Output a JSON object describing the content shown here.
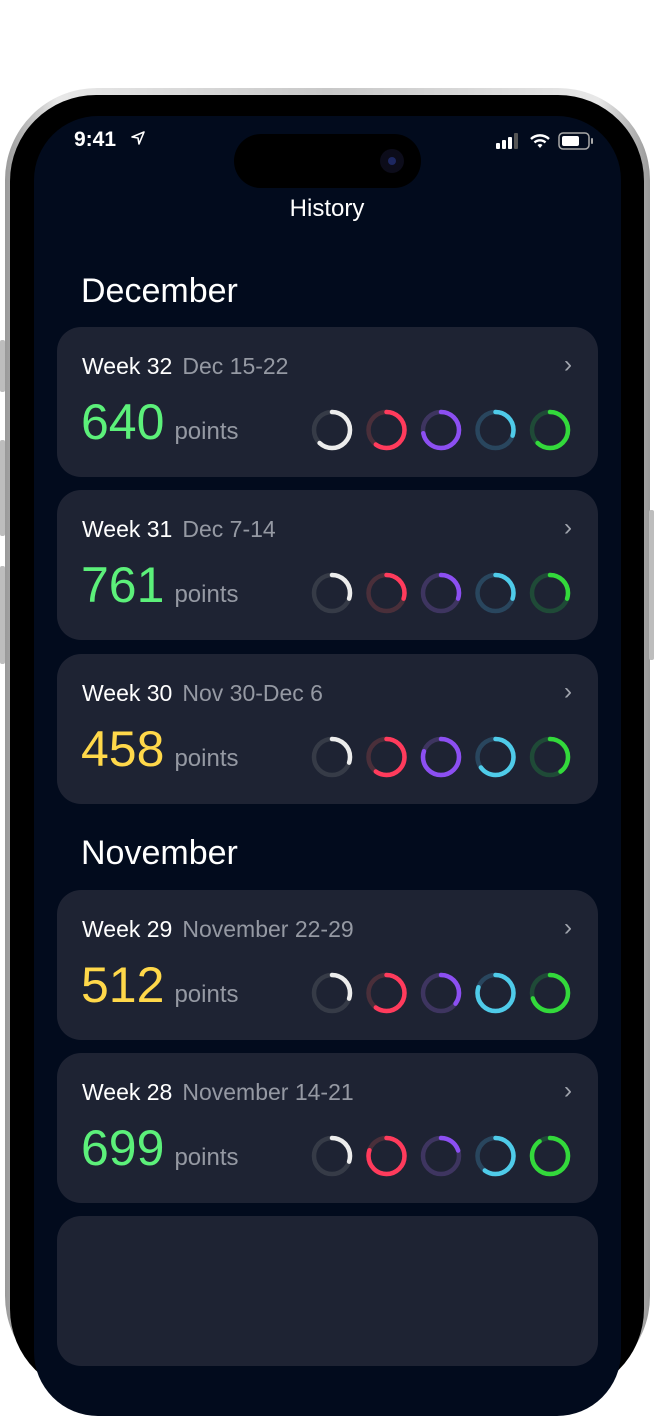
{
  "status_bar": {
    "time": "9:41",
    "location_icon": "location-arrow-icon",
    "signal_icon": "cellular-signal-icon",
    "wifi_icon": "wifi-icon",
    "battery_icon": "battery-icon"
  },
  "header": {
    "title": "History"
  },
  "ring_colors": [
    {
      "fg": "#ececec",
      "bg": "#363b47"
    },
    {
      "fg": "#ff3b5c",
      "bg": "#4a2f3a"
    },
    {
      "fg": "#8c4ff2",
      "bg": "#3e3560"
    },
    {
      "fg": "#4fcbe9",
      "bg": "#29465e"
    },
    {
      "fg": "#33d93b",
      "bg": "#1f4a37"
    }
  ],
  "score_colors": {
    "green": "#5cf07a",
    "yellow": "#ffd84a"
  },
  "sections": [
    {
      "month": "December",
      "weeks": [
        {
          "week": "Week 32",
          "dates": "Dec 15-22",
          "points": "640",
          "unit": "points",
          "color": "green",
          "rings": [
            0.62,
            0.6,
            0.72,
            0.3,
            0.62
          ]
        },
        {
          "week": "Week 31",
          "dates": "Dec 7-14",
          "points": "761",
          "unit": "points",
          "color": "green",
          "rings": [
            0.3,
            0.3,
            0.3,
            0.3,
            0.3
          ]
        },
        {
          "week": "Week 30",
          "dates": "Nov 30-Dec 6",
          "points": "458",
          "unit": "points",
          "color": "yellow",
          "rings": [
            0.3,
            0.6,
            0.8,
            0.65,
            0.4
          ]
        }
      ]
    },
    {
      "month": "November",
      "weeks": [
        {
          "week": "Week 29",
          "dates": "November 22-29",
          "points": "512",
          "unit": "points",
          "color": "yellow",
          "rings": [
            0.3,
            0.6,
            0.35,
            0.8,
            0.7
          ]
        },
        {
          "week": "Week 28",
          "dates": "November 14-21",
          "points": "699",
          "unit": "points",
          "color": "green",
          "rings": [
            0.3,
            0.8,
            0.2,
            0.6,
            0.9
          ]
        }
      ]
    }
  ]
}
